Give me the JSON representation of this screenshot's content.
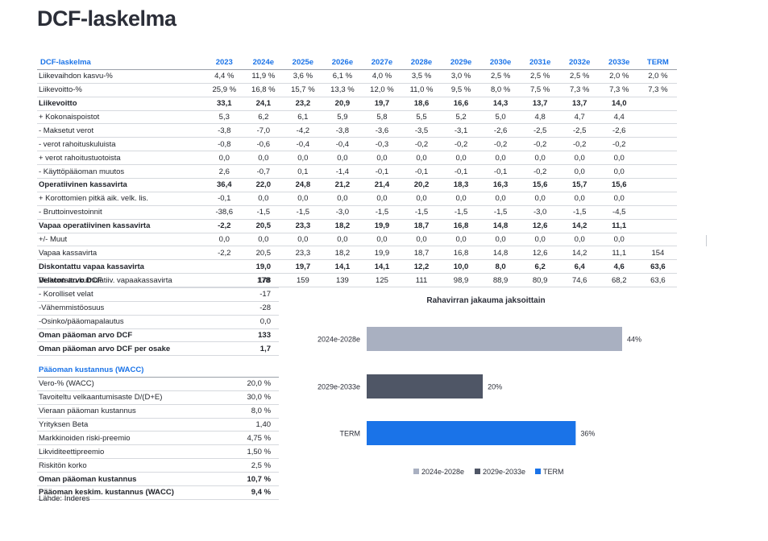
{
  "title": "DCF-laskelma",
  "dcf_table": {
    "header": [
      "DCF-laskelma",
      "2023",
      "2024e",
      "2025e",
      "2026e",
      "2027e",
      "2028e",
      "2029e",
      "2030e",
      "2031e",
      "2032e",
      "2033e",
      "TERM"
    ],
    "rows": [
      {
        "label": "Liikevaihdon kasvu-%",
        "bold": false,
        "values": [
          "4,4 %",
          "11,9 %",
          "3,6 %",
          "6,1 %",
          "4,0 %",
          "3,5 %",
          "3,0 %",
          "2,5 %",
          "2,5 %",
          "2,5 %",
          "2,0 %",
          "2,0 %"
        ]
      },
      {
        "label": "Liikevoitto-%",
        "bold": false,
        "values": [
          "25,9 %",
          "16,8 %",
          "15,7 %",
          "13,3 %",
          "12,0 %",
          "11,0 %",
          "9,5 %",
          "8,0 %",
          "7,5 %",
          "7,3 %",
          "7,3 %",
          "7,3 %"
        ]
      },
      {
        "label": "Liikevoitto",
        "bold": true,
        "values": [
          "33,1",
          "24,1",
          "23,2",
          "20,9",
          "19,7",
          "18,6",
          "16,6",
          "14,3",
          "13,7",
          "13,7",
          "14,0",
          ""
        ]
      },
      {
        "label": "+ Kokonaispoistot",
        "bold": false,
        "values": [
          "5,3",
          "6,2",
          "6,1",
          "5,9",
          "5,8",
          "5,5",
          "5,2",
          "5,0",
          "4,8",
          "4,7",
          "4,4",
          ""
        ]
      },
      {
        "label": "- Maksetut verot",
        "bold": false,
        "values": [
          "-3,8",
          "-7,0",
          "-4,2",
          "-3,8",
          "-3,6",
          "-3,5",
          "-3,1",
          "-2,6",
          "-2,5",
          "-2,5",
          "-2,6",
          ""
        ]
      },
      {
        "label": "- verot rahoituskuluista",
        "bold": false,
        "values": [
          "-0,8",
          "-0,6",
          "-0,4",
          "-0,4",
          "-0,3",
          "-0,2",
          "-0,2",
          "-0,2",
          "-0,2",
          "-0,2",
          "-0,2",
          ""
        ]
      },
      {
        "label": "+ verot rahoitustuotoista",
        "bold": false,
        "values": [
          "0,0",
          "0,0",
          "0,0",
          "0,0",
          "0,0",
          "0,0",
          "0,0",
          "0,0",
          "0,0",
          "0,0",
          "0,0",
          ""
        ]
      },
      {
        "label": "- Käyttöpääoman muutos",
        "bold": false,
        "values": [
          "2,6",
          "-0,7",
          "0,1",
          "-1,4",
          "-0,1",
          "-0,1",
          "-0,1",
          "-0,1",
          "-0,2",
          "0,0",
          "0,0",
          ""
        ]
      },
      {
        "label": "Operatiivinen kassavirta",
        "bold": true,
        "values": [
          "36,4",
          "22,0",
          "24,8",
          "21,2",
          "21,4",
          "20,2",
          "18,3",
          "16,3",
          "15,6",
          "15,7",
          "15,6",
          ""
        ]
      },
      {
        "label": "+ Korottomien pitkä aik. velk. lis.",
        "bold": false,
        "values": [
          "-0,1",
          "0,0",
          "0,0",
          "0,0",
          "0,0",
          "0,0",
          "0,0",
          "0,0",
          "0,0",
          "0,0",
          "0,0",
          ""
        ]
      },
      {
        "label": "- Bruttoinvestoinnit",
        "bold": false,
        "values": [
          "-38,6",
          "-1,5",
          "-1,5",
          "-3,0",
          "-1,5",
          "-1,5",
          "-1,5",
          "-1,5",
          "-3,0",
          "-1,5",
          "-4,5",
          ""
        ]
      },
      {
        "label": "Vapaa operatiivinen kassavirta",
        "bold": true,
        "values": [
          "-2,2",
          "20,5",
          "23,3",
          "18,2",
          "19,9",
          "18,7",
          "16,8",
          "14,8",
          "12,6",
          "14,2",
          "11,1",
          ""
        ]
      },
      {
        "label": "+/- Muut",
        "bold": false,
        "values": [
          "0,0",
          "0,0",
          "0,0",
          "0,0",
          "0,0",
          "0,0",
          "0,0",
          "0,0",
          "0,0",
          "0,0",
          "0,0",
          ""
        ]
      },
      {
        "label": "Vapaa kassavirta",
        "bold": false,
        "values": [
          "-2,2",
          "20,5",
          "23,3",
          "18,2",
          "19,9",
          "18,7",
          "16,8",
          "14,8",
          "12,6",
          "14,2",
          "11,1",
          "154"
        ]
      },
      {
        "label": "Diskontattu vapaa kassavirta",
        "bold": true,
        "values": [
          "",
          "19,0",
          "19,7",
          "14,1",
          "14,1",
          "12,2",
          "10,0",
          "8,0",
          "6,2",
          "6,4",
          "4,6",
          "63,6"
        ]
      },
      {
        "label": "Diskontattu kumulatiiv. vapaakassavirta",
        "bold": false,
        "values": [
          "",
          "178",
          "159",
          "139",
          "125",
          "111",
          "98,9",
          "88,9",
          "80,9",
          "74,6",
          "68,2",
          "63,6"
        ]
      }
    ]
  },
  "valuation_table": {
    "rows": [
      {
        "label": "Velaton arvo DCF",
        "value": "178",
        "bold": true
      },
      {
        "label": "- Korolliset velat",
        "value": "-17",
        "bold": false
      },
      {
        "label": "-Vähemmistöosuus",
        "value": "-28",
        "bold": false
      },
      {
        "label": "-Osinko/pääomapalautus",
        "value": "0,0",
        "bold": false
      },
      {
        "label": "Oman pääoman arvo DCF",
        "value": "133",
        "bold": true
      },
      {
        "label": "Oman pääoman arvo DCF per osake",
        "value": "1,7",
        "bold": true
      }
    ]
  },
  "wacc_table": {
    "title": "Pääoman kustannus (WACC)",
    "rows": [
      {
        "label": "Vero-% (WACC)",
        "value": "20,0 %",
        "bold": false
      },
      {
        "label": "Tavoiteltu velkaantumisaste D/(D+E)",
        "value": "30,0 %",
        "bold": false
      },
      {
        "label": "Vieraan pääoman kustannus",
        "value": "8,0 %",
        "bold": false
      },
      {
        "label": "Yrityksen Beta",
        "value": "1,40",
        "bold": false
      },
      {
        "label": "Markkinoiden riski-preemio",
        "value": "4,75 %",
        "bold": false
      },
      {
        "label": "Likviditeettipreemio",
        "value": "1,50 %",
        "bold": false
      },
      {
        "label": "Riskitön korko",
        "value": "2,5 %",
        "bold": false
      },
      {
        "label": "Oman pääoman kustannus",
        "value": "10,7 %",
        "bold": true
      },
      {
        "label": "Pääoman keskim. kustannus (WACC)",
        "value": "9,4 %",
        "bold": true
      }
    ]
  },
  "source": "Lähde: Inderes",
  "chart_data": {
    "type": "bar",
    "orientation": "horizontal",
    "title": "Rahavirran jakauma jaksoittain",
    "categories": [
      "2024e-2028e",
      "2029e-2033e",
      "TERM"
    ],
    "values": [
      44,
      20,
      36
    ],
    "value_labels": [
      "44%",
      "20%",
      "36%"
    ],
    "colors": [
      "#a9b0c1",
      "#4f5666",
      "#1a73e8"
    ],
    "xlim": [
      0,
      50
    ],
    "legend": [
      "2024e-2028e",
      "2029e-2033e",
      "TERM"
    ],
    "legend_position": "bottom",
    "grid": false
  }
}
